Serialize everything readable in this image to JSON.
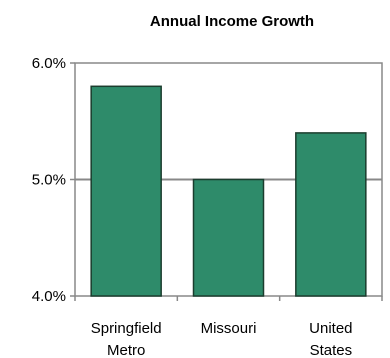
{
  "chart_data": {
    "type": "bar",
    "title": "Annual Income Growth",
    "xlabel": "",
    "ylabel": "",
    "categories": [
      "Springfield Metro",
      "Missouri",
      "United States"
    ],
    "category_lines": [
      [
        "Springfield",
        "Metro"
      ],
      [
        "Missouri"
      ],
      [
        "United",
        "States"
      ]
    ],
    "values": [
      5.8,
      5.0,
      5.4
    ],
    "ylim": [
      4.0,
      6.0
    ],
    "yticks": [
      4.0,
      5.0,
      6.0
    ],
    "ytick_labels": [
      "4.0%",
      "5.0%",
      "6.0%"
    ],
    "gridlines": [
      5.0
    ],
    "grid": true,
    "bar_color": "#2e8b6a",
    "bar_stroke": "#1b3d2e"
  }
}
